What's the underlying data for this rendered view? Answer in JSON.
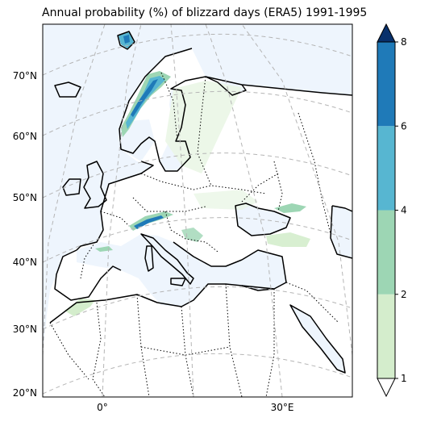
{
  "title": "Annual probability (%) of blizzard days (ERA5) 1991-1995",
  "map": {
    "lat_labels": [
      "70°N",
      "60°N",
      "50°N",
      "40°N",
      "30°N",
      "20°N"
    ],
    "lon_labels": [
      "0°",
      "30°E"
    ],
    "colors": {
      "ocean": "#eef5fd",
      "land": "#ffffff",
      "coast": "#000000",
      "borders": "#000000",
      "graticule": "#b5b5b5",
      "light_shading": "#eaf6e6"
    }
  },
  "colorbar": {
    "tick_labels": [
      "1",
      "2",
      "4",
      "6",
      "8"
    ],
    "levels": [
      1,
      2,
      4,
      6,
      8
    ],
    "bin_colors": [
      "#d4edcc",
      "#9dd6b4",
      "#57b6d1",
      "#1f7ab8"
    ],
    "over_color": "#08306b",
    "under_color": "#ffffff",
    "extend": "both"
  }
}
